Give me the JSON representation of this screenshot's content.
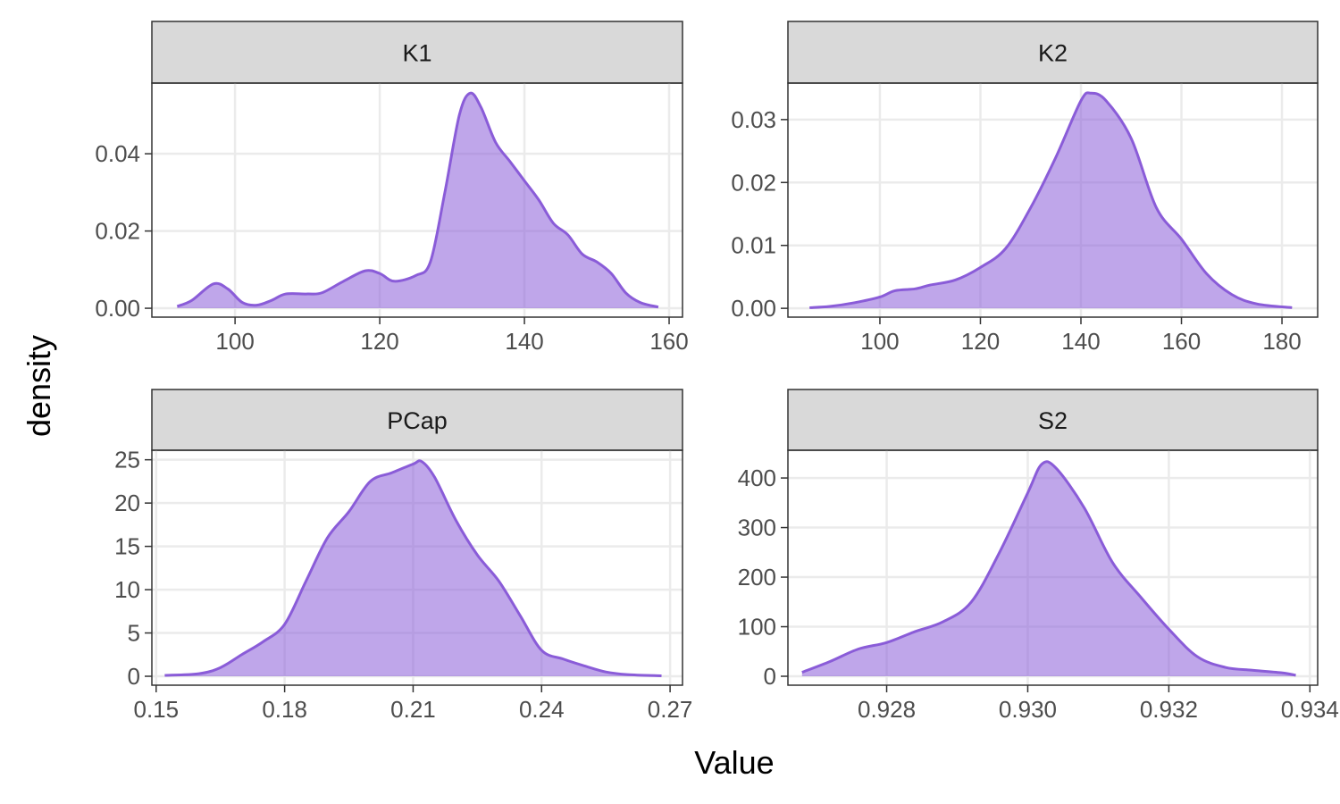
{
  "xlabel": "Value",
  "ylabel": "density",
  "chart_data": [
    {
      "type": "density",
      "title": "K1",
      "color": "#8a5cd8",
      "grid": true,
      "x": [
        92,
        94,
        97,
        99,
        101,
        103,
        105,
        107,
        110,
        112,
        115,
        118,
        120,
        122,
        125,
        127,
        129,
        131,
        132.5,
        134,
        136,
        138,
        140,
        142,
        144,
        146,
        148,
        150,
        152,
        154,
        156,
        158.5
      ],
      "values": [
        0.0005,
        0.002,
        0.0063,
        0.005,
        0.0015,
        0.0008,
        0.002,
        0.0037,
        0.0037,
        0.004,
        0.007,
        0.0097,
        0.009,
        0.007,
        0.0085,
        0.012,
        0.03,
        0.05,
        0.0557,
        0.052,
        0.043,
        0.038,
        0.033,
        0.028,
        0.022,
        0.019,
        0.014,
        0.012,
        0.009,
        0.004,
        0.0015,
        0.0003
      ],
      "xlim": [
        88.5,
        161.85
      ],
      "ylim": [
        -0.0023,
        0.0583
      ],
      "xticks": [
        100,
        120,
        140,
        160
      ],
      "yticks": [
        {
          "value": 0,
          "label": "0.00"
        },
        {
          "value": 0.02,
          "label": "0.02"
        },
        {
          "value": 0.04,
          "label": "0.04"
        }
      ]
    },
    {
      "type": "density",
      "title": "K2",
      "color": "#8a5cd8",
      "grid": true,
      "x": [
        86,
        90,
        95,
        100,
        103,
        107,
        110,
        115,
        120,
        125,
        130,
        135,
        140,
        142,
        145,
        150,
        155,
        160,
        165,
        170,
        175,
        182
      ],
      "values": [
        0.0001,
        0.0003,
        0.0009,
        0.0018,
        0.0028,
        0.0031,
        0.0037,
        0.0045,
        0.0065,
        0.0095,
        0.016,
        0.024,
        0.033,
        0.0342,
        0.033,
        0.027,
        0.016,
        0.011,
        0.0055,
        0.0022,
        0.0007,
        0.0001
      ],
      "xlim": [
        81.7,
        187.1
      ],
      "ylim": [
        -0.0014,
        0.0358
      ],
      "xticks": [
        100,
        120,
        140,
        160,
        180
      ],
      "yticks": [
        {
          "value": 0,
          "label": "0.00"
        },
        {
          "value": 0.01,
          "label": "0.01"
        },
        {
          "value": 0.02,
          "label": "0.02"
        },
        {
          "value": 0.03,
          "label": "0.03"
        }
      ]
    },
    {
      "type": "density",
      "title": "PCap",
      "color": "#8a5cd8",
      "grid": true,
      "x": [
        0.152,
        0.16,
        0.165,
        0.17,
        0.175,
        0.18,
        0.185,
        0.19,
        0.195,
        0.2,
        0.205,
        0.21,
        0.212,
        0.215,
        0.22,
        0.225,
        0.23,
        0.235,
        0.24,
        0.245,
        0.25,
        0.255,
        0.26,
        0.268
      ],
      "values": [
        0.1,
        0.3,
        1,
        2.5,
        4,
        6,
        11,
        16,
        19,
        22.5,
        23.5,
        24.5,
        24.8,
        23,
        18,
        14,
        11,
        7,
        3,
        2,
        1.2,
        0.5,
        0.2,
        0.05
      ],
      "xlim": [
        0.149,
        0.2729
      ],
      "ylim": [
        -1.03,
        26.1
      ],
      "xticks": [
        0.15,
        0.18,
        0.21,
        0.24,
        0.27
      ],
      "yticks": [
        0,
        5,
        10,
        15,
        20,
        25
      ]
    },
    {
      "type": "density",
      "title": "S2",
      "color": "#8a5cd8",
      "grid": true,
      "x": [
        0.9268,
        0.9272,
        0.9276,
        0.928,
        0.9284,
        0.9288,
        0.9292,
        0.9296,
        0.93,
        0.9302,
        0.9304,
        0.9308,
        0.9312,
        0.9316,
        0.932,
        0.9324,
        0.9328,
        0.9332,
        0.9336,
        0.9338
      ],
      "values": [
        8,
        30,
        55,
        68,
        90,
        110,
        150,
        250,
        370,
        428,
        420,
        340,
        230,
        160,
        95,
        40,
        18,
        12,
        7,
        2
      ],
      "xlim": [
        0.9266,
        0.93411
      ],
      "ylim": [
        -18,
        456
      ],
      "xticks": [
        0.928,
        {
          "value": 0.93,
          "label": "0.930"
        },
        0.932,
        0.934
      ],
      "yticks": [
        0,
        100,
        200,
        300,
        400
      ]
    }
  ]
}
